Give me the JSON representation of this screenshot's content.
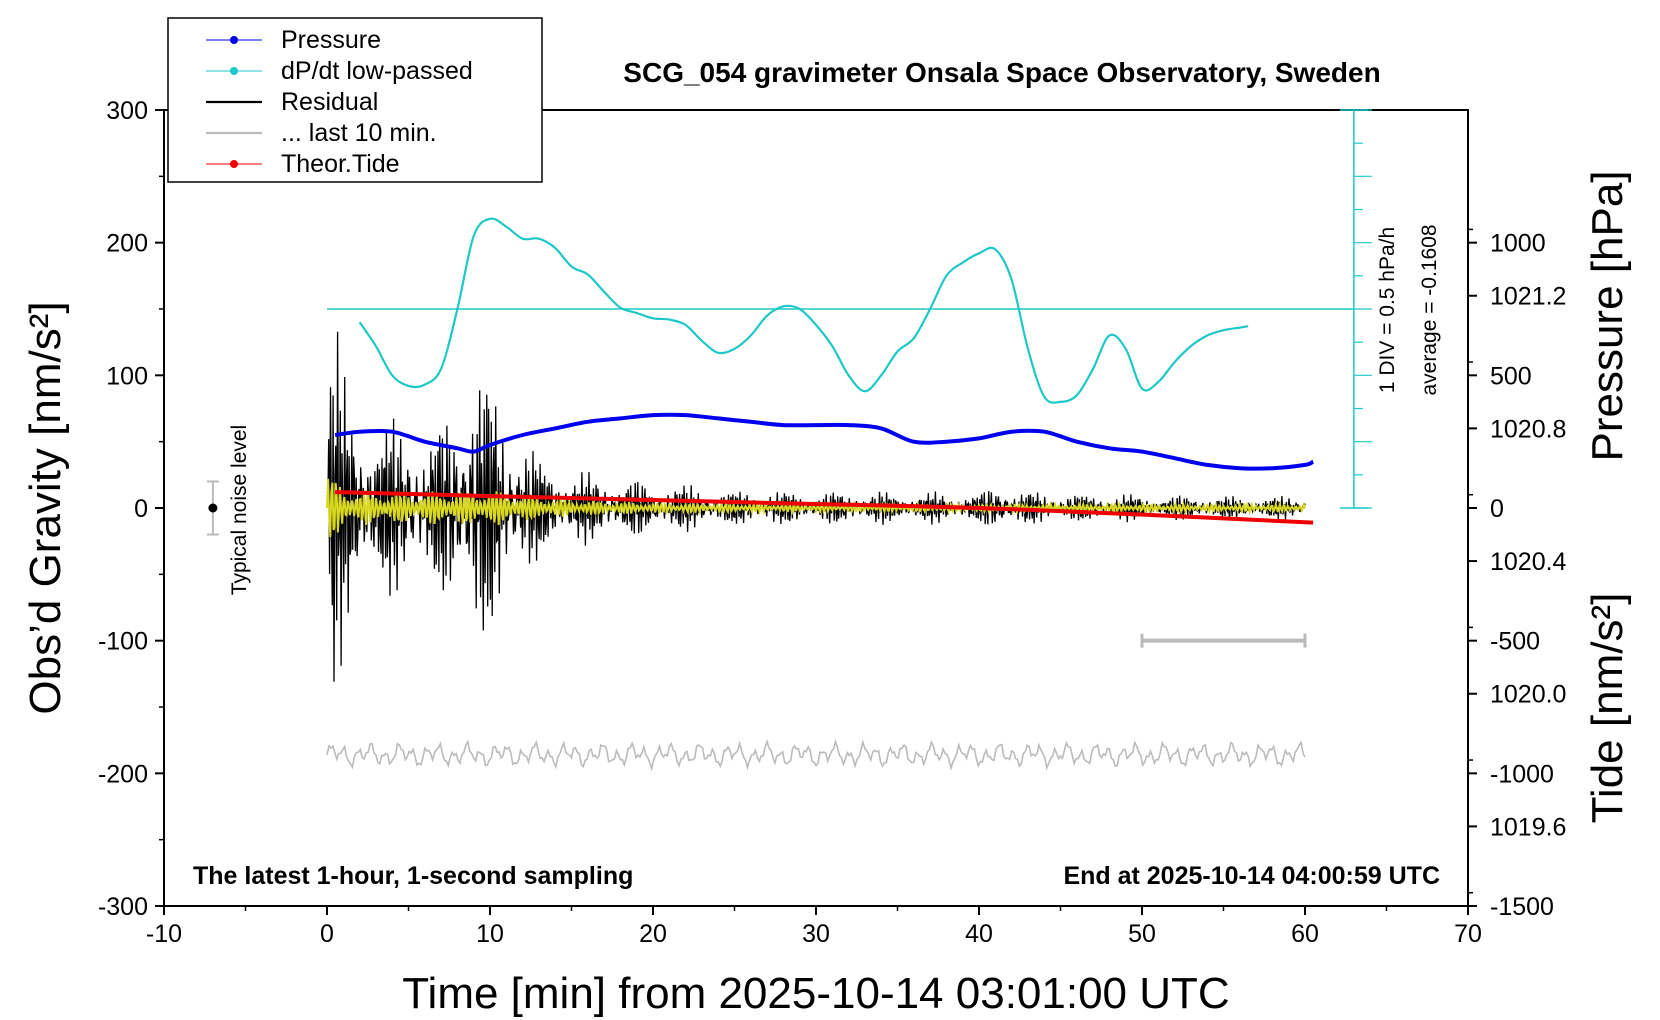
{
  "chart_data": {
    "type": "line",
    "title": "SCG_054 gravimeter Onsala Space Observatory, Sweden",
    "xlabel": "Time [min] from 2025-10-14 03:01:00 UTC",
    "ylabel_left": "Obs’d Gravity [nm/s²]",
    "ylabel_right_top": "Pressure [hPa]",
    "ylabel_right_bottom": "Tide [nm/s²]",
    "xlim": [
      -10,
      70
    ],
    "ylim_gravity": [
      -300,
      300
    ],
    "pressure_axis_range": [
      1019.36,
      1021.76
    ],
    "tide_axis_range": [
      -1500,
      1500
    ],
    "x_ticks": [
      "-10",
      "0",
      "10",
      "20",
      "30",
      "40",
      "50",
      "60",
      "70"
    ],
    "gravity_ticks": [
      "300",
      "200",
      "100",
      "0",
      "-100",
      "-200",
      "-300"
    ],
    "pressure_ticks": [
      "1021.2",
      "1020.8",
      "1020.4",
      "1020.0",
      "1019.6"
    ],
    "tide_ticks": [
      "1000",
      "500",
      "0",
      "-500",
      "-1000",
      "-1500"
    ],
    "legend_placement": "top-left, outside plot",
    "legend": [
      {
        "label": "Pressure",
        "color": "#0000ee",
        "marker": "dot"
      },
      {
        "label": "dP/dt low-passed",
        "color": "#1ec8c8",
        "marker": "dot"
      },
      {
        "label": "Residual",
        "color": "#000000",
        "marker": "none"
      },
      {
        "label": "... last 10 min.",
        "color": "#bbbbbb",
        "marker": "none"
      },
      {
        "label": "Theor.Tide",
        "color": "#ee0000",
        "marker": "dot"
      }
    ],
    "annotations": {
      "bottom_left": "The latest 1-hour, 1-second sampling",
      "bottom_right": "End at 2025-10-14 04:00:59 UTC",
      "noise_label": "Typical noise level",
      "dpdt_scale": "1 DIV = 0.5 hPa/h",
      "dpdt_average": "average = -0.1608"
    },
    "noise_bar": {
      "x": -7,
      "center": 0,
      "half_range": 20
    },
    "last10_bar": {
      "x_start": 50,
      "x_end": 60,
      "y": -100
    },
    "series": [
      {
        "name": "Pressure",
        "unit": "hPa",
        "color": "#0000ee",
        "x": [
          0.5,
          2,
          4,
          6,
          8,
          9,
          10,
          12,
          14,
          16,
          18,
          20,
          22,
          24,
          26,
          28,
          30,
          32,
          34,
          36,
          38,
          40,
          42,
          44,
          46,
          48,
          50,
          52,
          54,
          56,
          58,
          60,
          60.5
        ],
        "values": [
          1020.78,
          1020.79,
          1020.79,
          1020.76,
          1020.74,
          1020.73,
          1020.75,
          1020.78,
          1020.8,
          1020.82,
          1020.83,
          1020.84,
          1020.84,
          1020.83,
          1020.82,
          1020.81,
          1020.81,
          1020.81,
          1020.8,
          1020.76,
          1020.76,
          1020.77,
          1020.79,
          1020.79,
          1020.76,
          1020.74,
          1020.73,
          1020.71,
          1020.69,
          1020.68,
          1020.68,
          1020.69,
          1020.7
        ]
      },
      {
        "name": "dP/dt low-passed",
        "unit": "nm/s²-axis position (1 DIV = 0.5 hPa/h)",
        "color": "#1ec8c8",
        "average_line_y": 150,
        "x": [
          2,
          3,
          4,
          5,
          6,
          7,
          8,
          9,
          10,
          11,
          12,
          13,
          14,
          15,
          16,
          17,
          18,
          19,
          20,
          21,
          22,
          23,
          24,
          25,
          26,
          27,
          28,
          29,
          30,
          31,
          32,
          33,
          34,
          35,
          36,
          37,
          38,
          39,
          40,
          41,
          42,
          43,
          44,
          45,
          46,
          47,
          48,
          49,
          50,
          51,
          52,
          53,
          54,
          55,
          56,
          56.5
        ],
        "values": [
          140,
          122,
          100,
          92,
          93,
          105,
          150,
          205,
          218,
          212,
          203,
          203,
          196,
          182,
          176,
          163,
          151,
          147,
          143,
          142,
          138,
          126,
          117,
          120,
          130,
          145,
          152,
          150,
          138,
          122,
          100,
          88,
          100,
          118,
          128,
          150,
          175,
          185,
          192,
          195,
          172,
          120,
          84,
          80,
          85,
          105,
          130,
          120,
          90,
          95,
          110,
          122,
          130,
          134,
          136,
          137
        ]
      },
      {
        "name": "Residual",
        "unit": "nm/s²",
        "color": "#000000",
        "generation": "oscillating trace; envelope amplitude per x",
        "envelope_x": [
          0,
          0.3,
          1,
          2,
          3,
          4,
          5,
          6,
          7,
          8,
          9,
          10,
          11,
          12,
          13,
          14,
          15,
          17,
          20,
          25,
          30,
          35,
          40,
          41.5,
          42,
          45,
          50,
          55,
          60
        ],
        "envelope_amp": [
          60,
          140,
          90,
          75,
          55,
          60,
          65,
          40,
          60,
          80,
          100,
          90,
          60,
          50,
          35,
          30,
          25,
          22,
          18,
          12,
          11,
          11,
          10,
          20,
          12,
          10,
          9,
          8,
          8
        ]
      },
      {
        "name": "Residual (yellow overlay)",
        "unit": "nm/s²",
        "color": "#d8d820",
        "generation": "smoothed residual; envelope amplitude per x",
        "envelope_x": [
          0,
          1,
          3,
          5,
          8,
          10,
          12,
          15,
          20,
          30,
          40,
          50,
          60
        ],
        "envelope_amp": [
          30,
          15,
          12,
          12,
          13,
          14,
          10,
          6,
          4,
          3,
          3,
          3,
          3
        ]
      },
      {
        "name": "... last 10 min.",
        "unit": "nm/s²",
        "color": "#bbbbbb",
        "base": -186,
        "amplitude": 7,
        "x_range": [
          0,
          60
        ]
      },
      {
        "name": "Theor.Tide",
        "unit": "nm/s² (tide axis)",
        "color": "#ee0000",
        "x": [
          0.5,
          10,
          20,
          30,
          40,
          50,
          60.5
        ],
        "values": [
          60,
          45,
          30,
          15,
          0,
          -25,
          -55
        ]
      }
    ]
  }
}
